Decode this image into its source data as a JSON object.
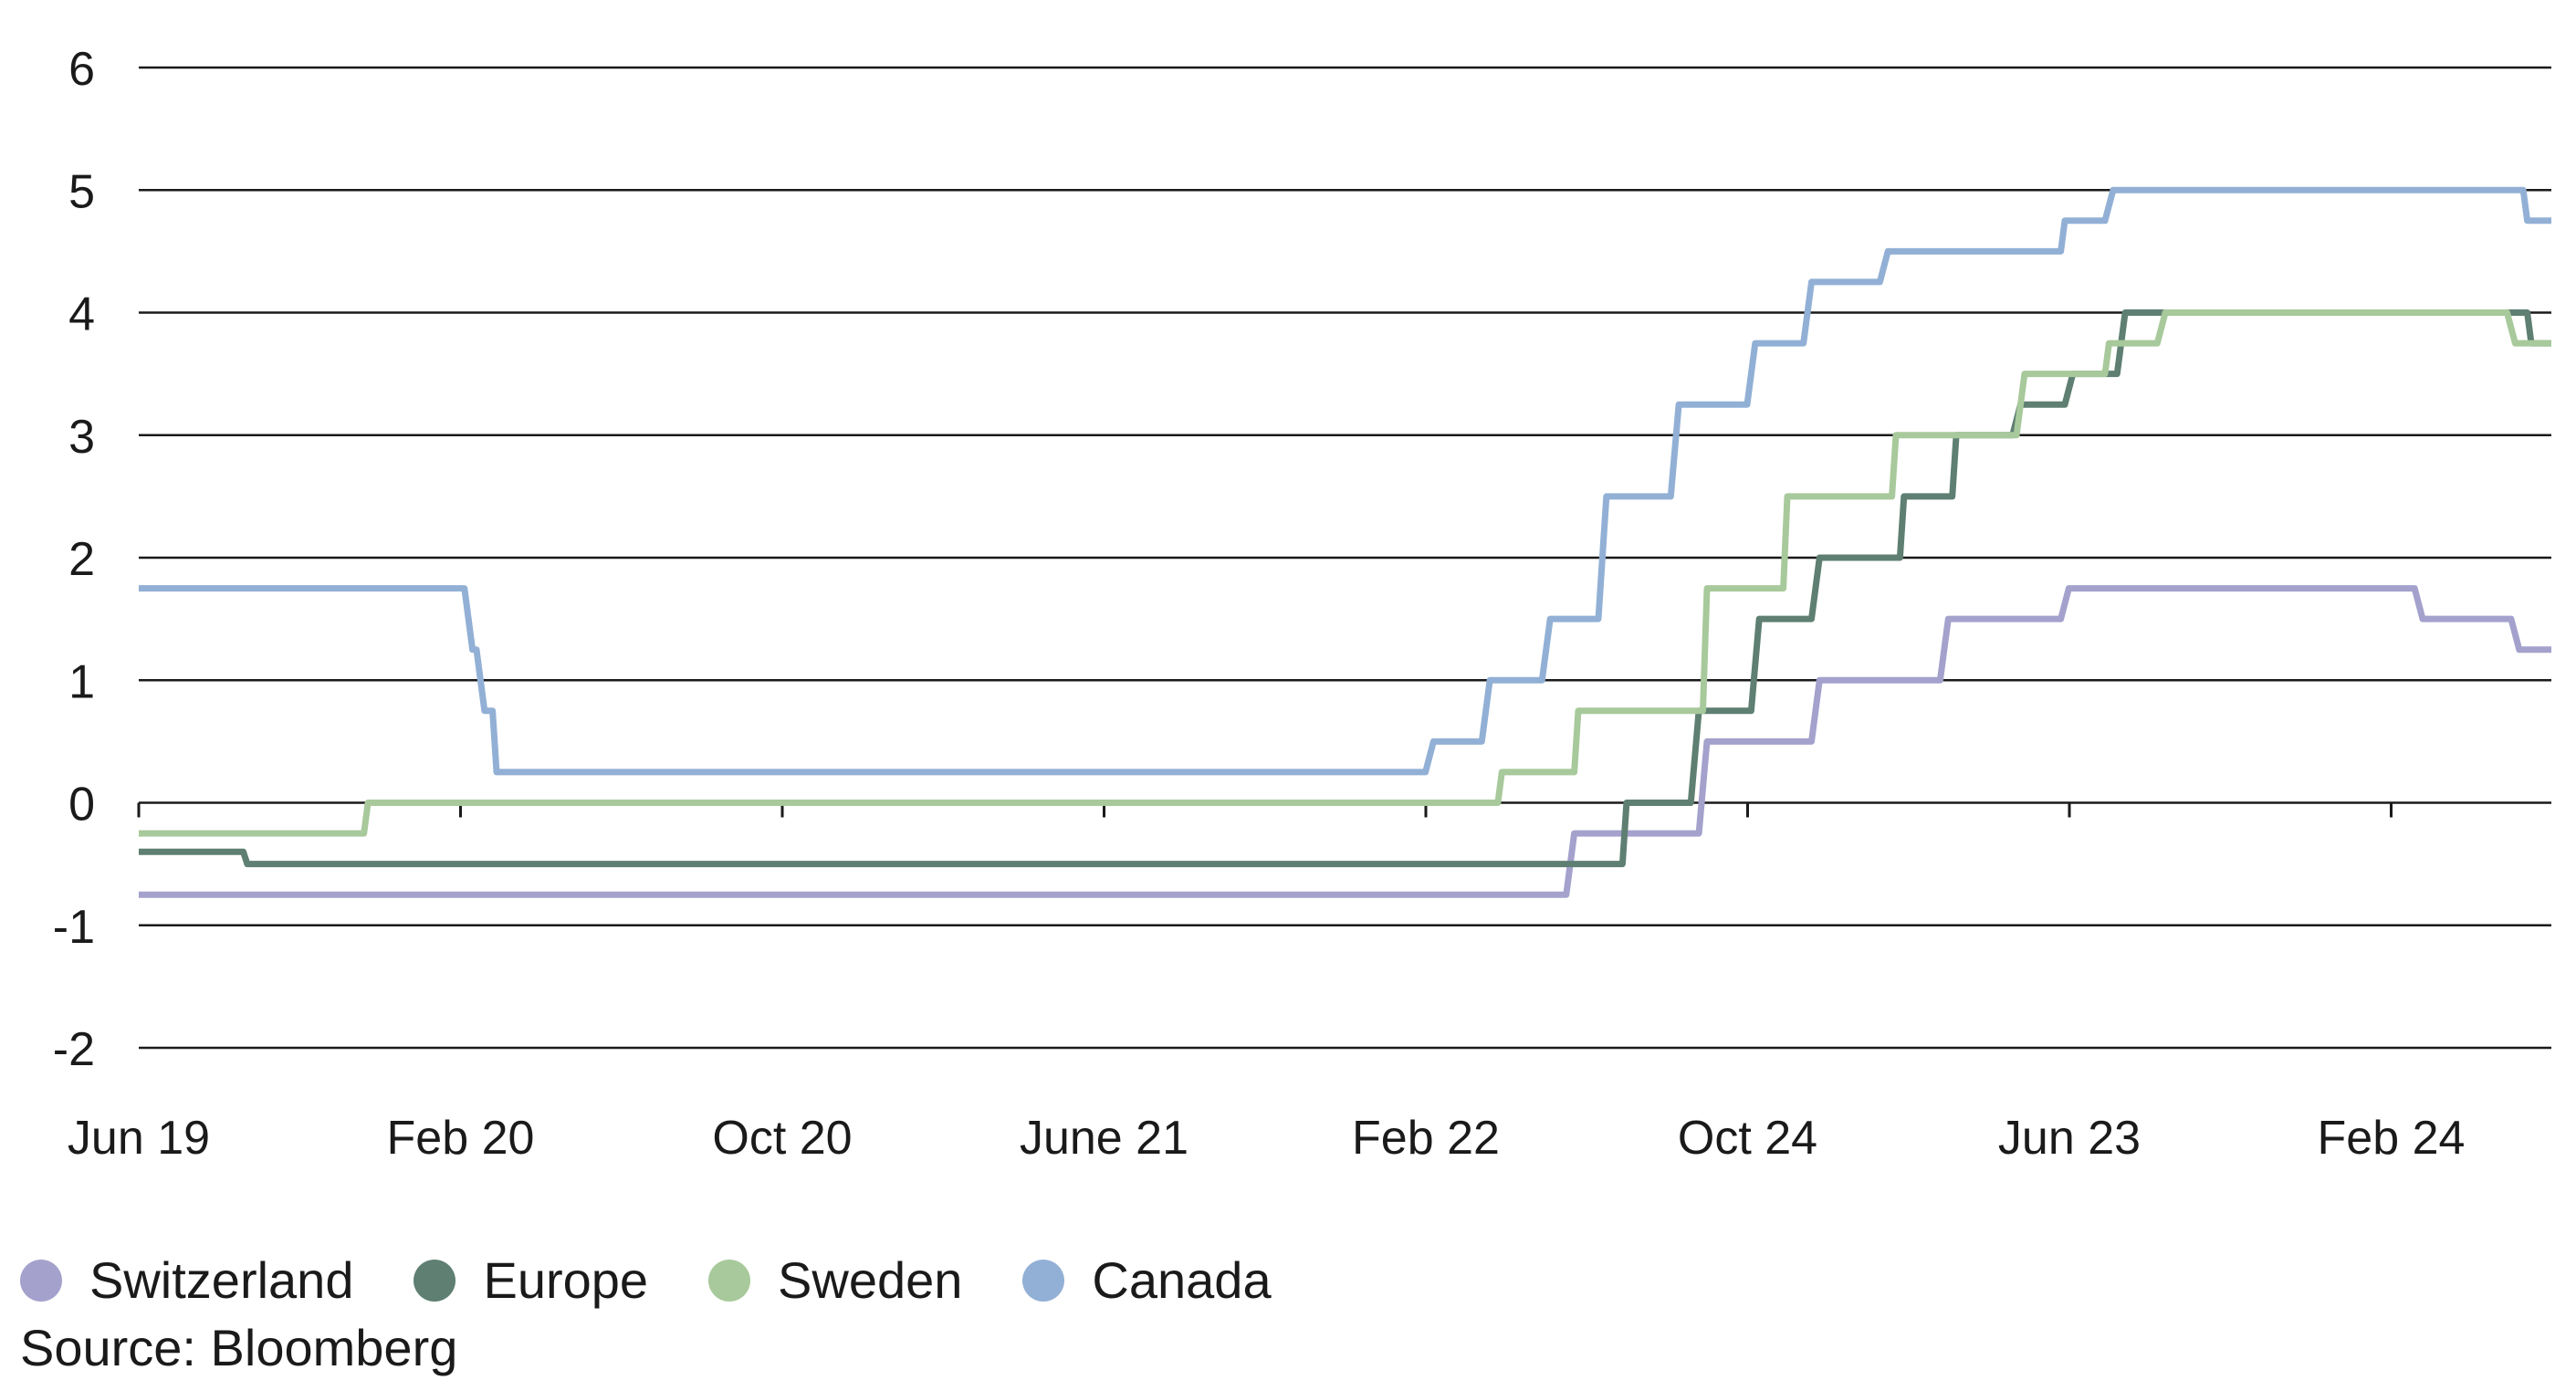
{
  "chart_data": {
    "type": "line",
    "x_ticks": [
      "Jun 19",
      "Feb 20",
      "Oct 20",
      "June 21",
      "Feb 22",
      "Oct 24",
      "Jun 23",
      "Feb 24"
    ],
    "y_ticks": [
      "6",
      "5",
      "4",
      "3",
      "2",
      "1",
      "0",
      "-1",
      "-2"
    ],
    "xlim": [
      0,
      60
    ],
    "ylim": [
      -2,
      6
    ],
    "grid": true,
    "legend_position": "bottom-left",
    "series": [
      {
        "name": "Switzerland",
        "color": "#a4a1cd",
        "x": [
          0,
          35.5,
          35.7,
          38.8,
          39.0,
          41.6,
          41.8,
          44.8,
          45.0,
          47.8,
          48.0,
          56.6,
          56.8,
          59.0,
          59.2,
          60
        ],
        "y": [
          -0.75,
          -0.75,
          -0.25,
          -0.25,
          0.5,
          0.5,
          1.0,
          1.0,
          1.5,
          1.5,
          1.75,
          1.75,
          1.5,
          1.5,
          1.25,
          1.25
        ]
      },
      {
        "name": "Europe",
        "color": "#5e7f72",
        "x": [
          0,
          2.6,
          2.7,
          36.9,
          37.0,
          38.6,
          38.8,
          40.1,
          40.3,
          41.6,
          41.8,
          43.8,
          43.9,
          45.1,
          45.2,
          46.6,
          46.8,
          47.9,
          48.1,
          49.2,
          49.4,
          59.4,
          59.5,
          60
        ],
        "y": [
          -0.4,
          -0.4,
          -0.5,
          -0.5,
          0.0,
          0.0,
          0.75,
          0.75,
          1.5,
          1.5,
          2.0,
          2.0,
          2.5,
          2.5,
          3.0,
          3.0,
          3.25,
          3.25,
          3.5,
          3.5,
          4.0,
          4.0,
          3.75,
          3.75
        ]
      },
      {
        "name": "Sweden",
        "color": "#a8c99b",
        "x": [
          0,
          5.6,
          5.7,
          33.8,
          33.9,
          35.7,
          35.8,
          38.9,
          39.0,
          40.9,
          41.0,
          43.6,
          43.7,
          45.1,
          45.3,
          46.7,
          46.9,
          48.9,
          49.0,
          50.2,
          50.4,
          58.9,
          59.1,
          60
        ],
        "y": [
          -0.25,
          -0.25,
          0.0,
          0.0,
          0.25,
          0.25,
          0.75,
          0.75,
          1.75,
          1.75,
          2.5,
          2.5,
          3.0,
          3.0,
          3.0,
          3.0,
          3.5,
          3.5,
          3.75,
          3.75,
          4.0,
          4.0,
          3.75,
          3.75
        ]
      },
      {
        "name": "Canada",
        "color": "#92b0d5",
        "x": [
          0,
          8.1,
          8.3,
          8.4,
          8.6,
          8.8,
          8.9,
          32.0,
          32.2,
          33.4,
          33.6,
          34.9,
          35.1,
          36.3,
          36.5,
          38.1,
          38.3,
          40.0,
          40.2,
          41.4,
          41.6,
          43.3,
          43.5,
          47.8,
          47.9,
          48.9,
          49.1,
          59.3,
          59.4,
          60
        ],
        "y": [
          1.75,
          1.75,
          1.25,
          1.25,
          0.75,
          0.75,
          0.25,
          0.25,
          0.5,
          0.5,
          1.0,
          1.0,
          1.5,
          1.5,
          2.5,
          2.5,
          3.25,
          3.25,
          3.75,
          3.75,
          4.25,
          4.25,
          4.5,
          4.5,
          4.75,
          4.75,
          5.0,
          5.0,
          4.75,
          4.75
        ]
      }
    ]
  },
  "source": "Source: Bloomberg"
}
